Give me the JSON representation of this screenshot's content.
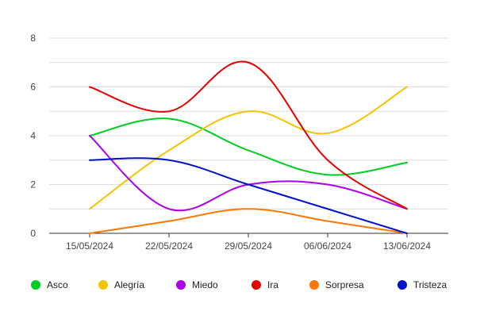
{
  "chart_data": {
    "type": "line",
    "x": [
      "15/05/2024",
      "22/05/2024",
      "29/05/2024",
      "06/06/2024",
      "13/06/2024"
    ],
    "ylim": [
      0,
      8
    ],
    "yticks": [
      0,
      2,
      4,
      6,
      8
    ],
    "grid": true,
    "legend_position": "bottom",
    "smooth": true,
    "series": [
      {
        "name": "Asco",
        "color": "#00cc22",
        "values": [
          4,
          4.7,
          3.4,
          2.4,
          2.9
        ]
      },
      {
        "name": "Alegría",
        "color": "#f5c400",
        "values": [
          1,
          3.4,
          5,
          4.1,
          6
        ]
      },
      {
        "name": "Miedo",
        "color": "#aa00ee",
        "values": [
          4,
          1,
          2,
          2,
          1
        ]
      },
      {
        "name": "Ira",
        "color": "#e60000",
        "values": [
          6,
          5,
          7,
          3,
          1
        ]
      },
      {
        "name": "Sorpresa",
        "color": "#ff7700",
        "values": [
          0,
          0.5,
          1,
          0.5,
          0
        ]
      },
      {
        "name": "Tristeza",
        "color": "#0011cc",
        "values": [
          3,
          3,
          2,
          1,
          0
        ]
      }
    ]
  }
}
